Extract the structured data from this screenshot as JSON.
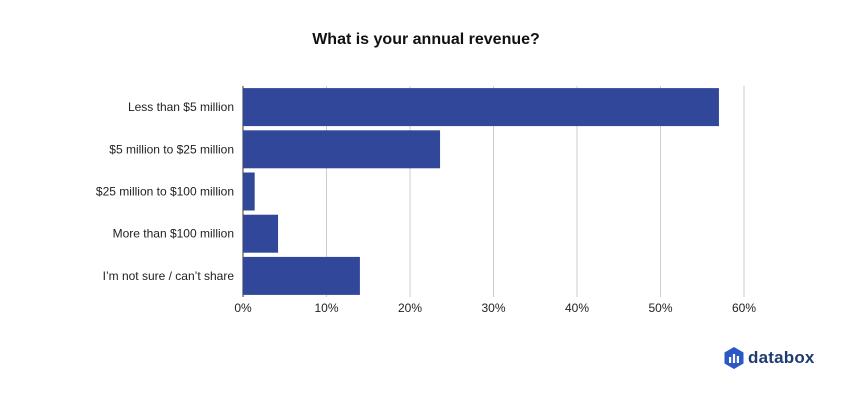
{
  "chart_data": {
    "type": "bar",
    "orientation": "horizontal",
    "title": "What is your annual revenue?",
    "xlabel": "",
    "ylabel": "",
    "categories": [
      "Less than $5 million",
      "$5 million to $25 million",
      "$25 million to $100 million",
      "More than $100 million",
      "I’m not sure / can’t share"
    ],
    "values": [
      57,
      23.6,
      1.4,
      4.2,
      14
    ],
    "unit": "%",
    "xlim": [
      0,
      60
    ],
    "ticks": [
      0,
      10,
      20,
      30,
      40,
      50,
      60
    ],
    "tick_labels": [
      "0%",
      "10%",
      "20%",
      "30%",
      "40%",
      "50%",
      "60%"
    ],
    "grid": true,
    "legend": "none",
    "bar_color": "#30479a",
    "grid_color": "#cccccc"
  },
  "brand": {
    "name": "databox",
    "color": "#1f3b70",
    "icon": "databox-logo-icon"
  }
}
